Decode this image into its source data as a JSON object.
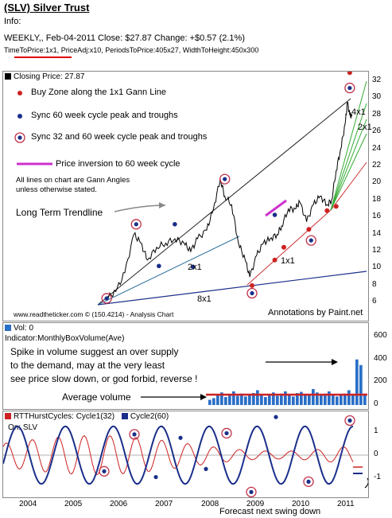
{
  "header": {
    "title": "(SLV) Silver Trust",
    "info": "Info:",
    "weekly_line": "WEEKLY,, Feb-04-2011   Close: $27.87   Change: +$0.57  (2.1%)",
    "params": "TimeToPrice:1x1, PriceAdj:x10, PeriodsToPrice:405x27, WidthToHeight:450x300"
  },
  "price_panel": {
    "legend": "Closing Price: 27.87",
    "annotations": {
      "buy_zone": "Buy Zone along the 1x1 Gann Line",
      "sync_60": "Sync 60 week cycle peak and troughs",
      "sync_32_60": "Sync 32 and 60 week cycle peak and troughs",
      "inversion": "Price inversion to 60 week cycle",
      "gann_note_1": "All lines on chart are Gann Angles",
      "gann_note_2": "unless otherwise stated.",
      "trendline": "Long Term Trendline",
      "label_2x1": "2x1",
      "label_8x1": "8x1",
      "label_1x1": "1x1",
      "label_4x1": "4x1",
      "label_2x1_right": "2x1",
      "credit": "www.readtheticker.com © (150.4214) - Analysis Chart",
      "paint": "Annotations by Paint.net"
    },
    "colors": {
      "price": "#000000",
      "red_dot": "#cc2222",
      "blue_dot": "#1a2f8a",
      "ring": "#c0304a",
      "magenta": "#cc33cc"
    }
  },
  "volume_panel": {
    "legend": "Vol: 0",
    "indicator": "Indicator:MonthlyBoxVolume(Ave)",
    "note_1": "Spike in volume suggest an over supply",
    "note_2": "to the demand, may at the very least",
    "note_3": "see price slow down, or god forbid, reverse !",
    "avg_label": "Average volume"
  },
  "cycle_panel": {
    "legend_1": "RTTHurstCycles: Cycle1(32)",
    "legend_2": "Cycle2(60)",
    "on": "On: SLV",
    "forecast": "Forecast next swing down"
  },
  "chart_data": [
    {
      "type": "line",
      "title": "Closing Price: 27.87",
      "x": [
        "2004",
        "2005",
        "2006",
        "2007",
        "2008",
        "2009",
        "2010",
        "2011"
      ],
      "ylim": [
        5,
        32
      ],
      "y_ticks": [
        "6",
        "8",
        "10",
        "12",
        "14",
        "16",
        "18",
        "20",
        "22",
        "24",
        "26",
        "28",
        "30",
        "32"
      ],
      "series": [
        {
          "name": "Closing Price",
          "points": [
            [
              2005.7,
              6.5
            ],
            [
              2005.9,
              7.3
            ],
            [
              2006.1,
              9.5
            ],
            [
              2006.3,
              14.0
            ],
            [
              2006.45,
              13.0
            ],
            [
              2006.6,
              11.0
            ],
            [
              2006.8,
              12.5
            ],
            [
              2007.0,
              13.0
            ],
            [
              2007.2,
              13.5
            ],
            [
              2007.4,
              13.0
            ],
            [
              2007.55,
              12.0
            ],
            [
              2007.7,
              13.5
            ],
            [
              2007.9,
              14.5
            ],
            [
              2008.05,
              17.0
            ],
            [
              2008.2,
              20.5
            ],
            [
              2008.3,
              18.5
            ],
            [
              2008.45,
              17.5
            ],
            [
              2008.6,
              13.0
            ],
            [
              2008.75,
              11.0
            ],
            [
              2008.85,
              9.0
            ],
            [
              2009.0,
              11.5
            ],
            [
              2009.15,
              13.0
            ],
            [
              2009.3,
              13.5
            ],
            [
              2009.45,
              14.0
            ],
            [
              2009.55,
              15.0
            ],
            [
              2009.7,
              17.0
            ],
            [
              2009.85,
              17.0
            ],
            [
              2009.95,
              17.8
            ],
            [
              2010.1,
              15.5
            ],
            [
              2010.25,
              17.5
            ],
            [
              2010.4,
              18.5
            ],
            [
              2010.55,
              17.5
            ],
            [
              2010.65,
              18.0
            ],
            [
              2010.75,
              21.5
            ],
            [
              2010.85,
              24.0
            ],
            [
              2010.95,
              27.0
            ],
            [
              2011.0,
              29.5
            ],
            [
              2011.05,
              28.0
            ],
            [
              2011.1,
              27.87
            ]
          ]
        }
      ]
    },
    {
      "type": "bar",
      "title": "Vol: 0",
      "y_ticks": [
        "0",
        "200",
        "400",
        "600"
      ],
      "ylim": [
        0,
        600
      ],
      "average_volume": 100,
      "values": [
        45,
        60,
        85,
        110,
        70,
        95,
        120,
        80,
        100,
        75,
        90,
        105,
        130,
        85,
        70,
        95,
        110,
        80,
        100,
        120,
        90,
        75,
        105,
        115,
        95,
        85,
        140,
        110,
        95,
        100,
        120,
        90,
        75,
        85,
        100,
        130,
        95,
        400,
        350,
        100
      ]
    },
    {
      "type": "line",
      "title": "RTTHurstCycles",
      "y_ticks": [
        "1",
        "0",
        "-1"
      ],
      "ylim": [
        -1.7,
        1.7
      ],
      "series": [
        {
          "name": "Cycle1(32)",
          "color": "#cc2222"
        },
        {
          "name": "Cycle2(60)",
          "color": "#1a2f8a"
        }
      ]
    }
  ],
  "axis": {
    "price_ticks": [
      "32",
      "30",
      "28",
      "26",
      "24",
      "22",
      "20",
      "18",
      "16",
      "14",
      "12",
      "10",
      "8",
      "6"
    ],
    "vol_ticks": [
      "600",
      "400",
      "200",
      "0"
    ],
    "cycle_ticks": [
      "1",
      "0",
      "-1"
    ],
    "years": [
      "2004",
      "2005",
      "2006",
      "2007",
      "2008",
      "2009",
      "2010",
      "2011"
    ]
  }
}
